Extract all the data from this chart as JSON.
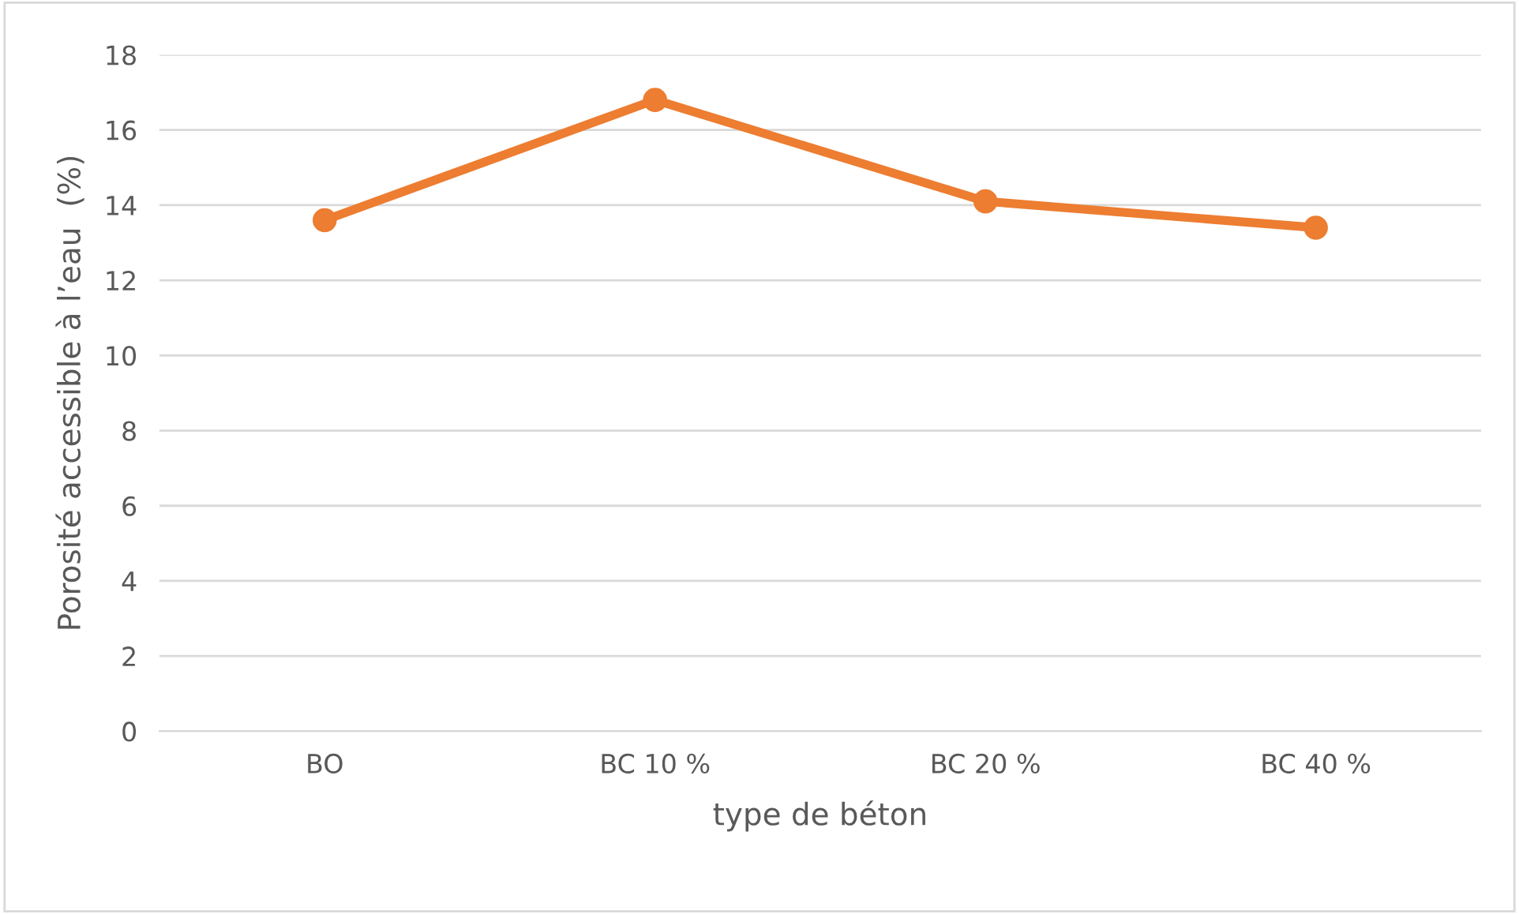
{
  "chart_data": {
    "type": "line",
    "xlabel": "type de béton",
    "ylabel": "Porosité accessible à l’eau  (%)",
    "categories": [
      "BO",
      "BC 10 %",
      "BC 20 %",
      "BC 40 %"
    ],
    "series": [
      {
        "color": "#ed7d31",
        "values": [
          13.6,
          16.8,
          14.1,
          13.4
        ]
      }
    ],
    "ylim": [
      0,
      18
    ],
    "yticks": [
      0,
      2,
      4,
      6,
      8,
      10,
      12,
      14,
      16,
      18
    ],
    "grid": "y",
    "marker": "circle",
    "line_style": "solid",
    "legend": false
  }
}
